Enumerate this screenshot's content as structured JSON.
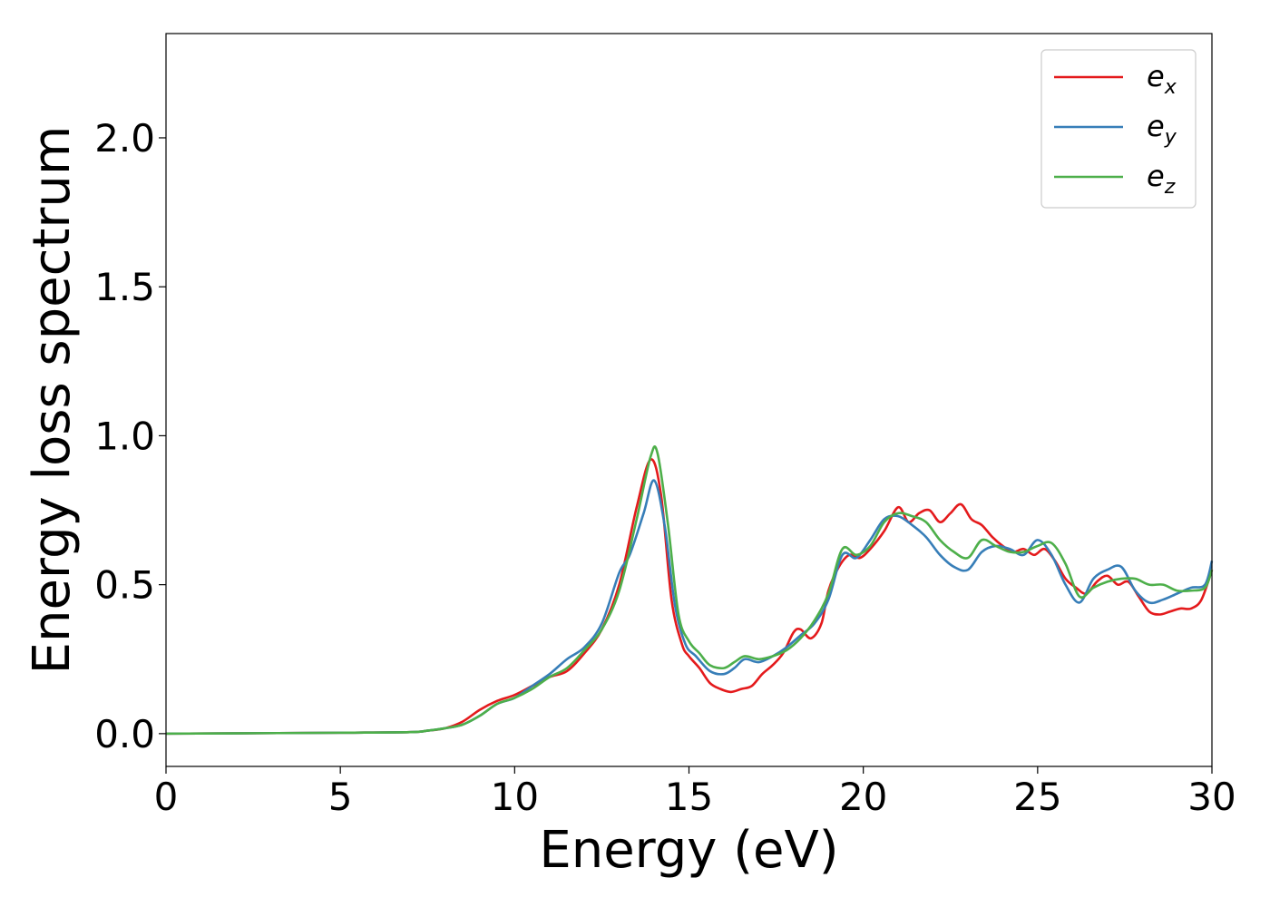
{
  "chart_data": {
    "type": "line",
    "xlabel": "Energy (eV)",
    "ylabel": "Energy loss spectrum",
    "xlim": [
      0,
      30
    ],
    "ylim": [
      -0.11,
      2.35
    ],
    "x_ticks": [
      "0",
      "5",
      "10",
      "15",
      "20",
      "25",
      "30"
    ],
    "y_ticks": [
      "0.0",
      "0.5",
      "1.0",
      "1.5",
      "2.0"
    ],
    "grid": false,
    "legend_position": "top-right",
    "series": [
      {
        "name": "e_x",
        "label_base": "e",
        "label_sub": "x",
        "color": "#e41a1c",
        "x": [
          0,
          5,
          7,
          7.5,
          8,
          8.5,
          9,
          9.5,
          10,
          10.5,
          11,
          11.5,
          12,
          12.5,
          13,
          13.5,
          13.9,
          14.2,
          14.5,
          14.8,
          15,
          15.3,
          15.6,
          15.9,
          16.2,
          16.5,
          16.8,
          17.1,
          17.4,
          17.7,
          18,
          18.2,
          18.5,
          18.8,
          19,
          19.3,
          19.6,
          19.9,
          20.2,
          20.6,
          21,
          21.3,
          21.6,
          21.9,
          22.2,
          22.5,
          22.8,
          23.1,
          23.4,
          23.7,
          24,
          24.3,
          24.6,
          24.9,
          25.2,
          25.5,
          25.8,
          26.1,
          26.4,
          26.7,
          27,
          27.3,
          27.6,
          27.9,
          28.2,
          28.5,
          28.8,
          29.1,
          29.4,
          29.7,
          30
        ],
        "y": [
          0,
          0.003,
          0.005,
          0.01,
          0.018,
          0.04,
          0.08,
          0.11,
          0.13,
          0.16,
          0.19,
          0.21,
          0.27,
          0.35,
          0.5,
          0.76,
          0.92,
          0.8,
          0.45,
          0.3,
          0.26,
          0.22,
          0.17,
          0.15,
          0.14,
          0.15,
          0.16,
          0.2,
          0.23,
          0.27,
          0.34,
          0.35,
          0.32,
          0.37,
          0.48,
          0.56,
          0.6,
          0.59,
          0.62,
          0.68,
          0.76,
          0.71,
          0.74,
          0.75,
          0.71,
          0.74,
          0.77,
          0.72,
          0.7,
          0.66,
          0.63,
          0.61,
          0.62,
          0.6,
          0.62,
          0.58,
          0.52,
          0.49,
          0.47,
          0.51,
          0.53,
          0.5,
          0.51,
          0.46,
          0.41,
          0.4,
          0.41,
          0.42,
          0.42,
          0.45,
          0.55
        ]
      },
      {
        "name": "e_y",
        "label_base": "e",
        "label_sub": "y",
        "color": "#377eb8",
        "x": [
          0,
          5,
          7,
          7.5,
          8,
          8.5,
          9,
          9.5,
          10,
          10.5,
          11,
          11.5,
          12,
          12.5,
          13,
          13.3,
          13.7,
          14,
          14.3,
          14.6,
          14.9,
          15.2,
          15.6,
          16,
          16.3,
          16.6,
          17,
          17.4,
          17.8,
          18.2,
          18.6,
          19,
          19.4,
          19.8,
          20.2,
          20.6,
          21,
          21.4,
          21.8,
          22.2,
          22.6,
          23,
          23.4,
          23.8,
          24.2,
          24.6,
          25,
          25.4,
          25.8,
          26.2,
          26.6,
          27,
          27.4,
          27.8,
          28.2,
          28.6,
          29,
          29.4,
          29.8,
          30
        ],
        "y": [
          0,
          0.003,
          0.005,
          0.01,
          0.018,
          0.03,
          0.06,
          0.1,
          0.12,
          0.16,
          0.2,
          0.25,
          0.29,
          0.37,
          0.54,
          0.6,
          0.74,
          0.85,
          0.7,
          0.43,
          0.3,
          0.26,
          0.21,
          0.2,
          0.22,
          0.25,
          0.24,
          0.26,
          0.29,
          0.33,
          0.37,
          0.45,
          0.6,
          0.59,
          0.65,
          0.72,
          0.73,
          0.7,
          0.66,
          0.6,
          0.56,
          0.55,
          0.61,
          0.63,
          0.62,
          0.6,
          0.65,
          0.6,
          0.5,
          0.44,
          0.52,
          0.55,
          0.56,
          0.48,
          0.44,
          0.45,
          0.47,
          0.49,
          0.5,
          0.58
        ]
      },
      {
        "name": "e_z",
        "label_base": "e",
        "label_sub": "z",
        "color": "#4daf4a",
        "x": [
          0,
          5,
          7,
          7.5,
          8,
          8.5,
          9,
          9.5,
          10,
          10.5,
          11,
          11.5,
          12,
          12.5,
          13,
          13.5,
          13.9,
          14.1,
          14.4,
          14.7,
          15,
          15.3,
          15.6,
          16,
          16.3,
          16.6,
          17,
          17.4,
          17.8,
          18.2,
          18.6,
          19,
          19.4,
          19.8,
          20.2,
          20.6,
          21,
          21.4,
          21.8,
          22.2,
          22.6,
          23,
          23.4,
          23.8,
          24.2,
          24.6,
          25,
          25.4,
          25.8,
          26.2,
          26.6,
          27,
          27.4,
          27.8,
          28.2,
          28.6,
          29,
          29.4,
          29.8,
          30
        ],
        "y": [
          0,
          0.003,
          0.005,
          0.01,
          0.018,
          0.03,
          0.06,
          0.1,
          0.12,
          0.15,
          0.19,
          0.22,
          0.28,
          0.35,
          0.48,
          0.72,
          0.93,
          0.94,
          0.7,
          0.4,
          0.31,
          0.27,
          0.23,
          0.22,
          0.24,
          0.26,
          0.25,
          0.26,
          0.28,
          0.32,
          0.38,
          0.47,
          0.62,
          0.6,
          0.63,
          0.71,
          0.74,
          0.73,
          0.71,
          0.65,
          0.61,
          0.59,
          0.65,
          0.63,
          0.61,
          0.61,
          0.63,
          0.64,
          0.57,
          0.46,
          0.49,
          0.51,
          0.52,
          0.52,
          0.5,
          0.5,
          0.48,
          0.48,
          0.49,
          0.55
        ]
      }
    ]
  }
}
